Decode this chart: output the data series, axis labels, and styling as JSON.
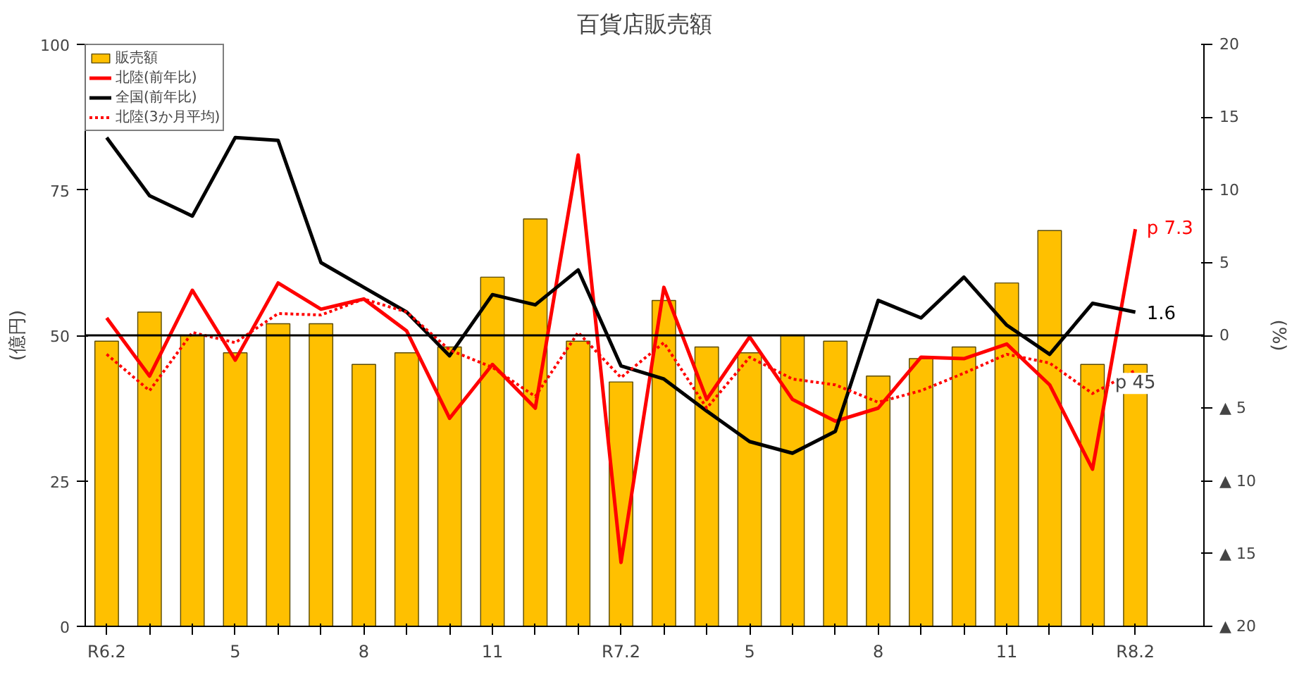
{
  "chart_data": {
    "type": "bar",
    "title": "百貨店販売額",
    "ylabel": "(億円)",
    "y2label": "(%)",
    "categories": [
      "R6.2",
      null,
      null,
      "5",
      null,
      null,
      "8",
      null,
      null,
      "11",
      null,
      null,
      "R7.2",
      null,
      null,
      "5",
      null,
      null,
      "8",
      null,
      null,
      "11",
      null,
      null,
      "R8.2"
    ],
    "series": [
      {
        "name": "販売額",
        "color": "#ffc000",
        "values": [
          49,
          54,
          50,
          47,
          52,
          52,
          45,
          47,
          48,
          60,
          70,
          49,
          42,
          56,
          48,
          47,
          50,
          49,
          43,
          46,
          48,
          59,
          68,
          45,
          45
        ],
        "value_labels": [
          null,
          null,
          null,
          null,
          null,
          null,
          null,
          null,
          null,
          null,
          null,
          null,
          null,
          null,
          null,
          null,
          null,
          null,
          null,
          null,
          null,
          null,
          null,
          null,
          "p 45"
        ]
      },
      {
        "name": "北陸(前年比)",
        "type": "line",
        "axis": "y2",
        "color": "#ff0000",
        "line_style": "solid",
        "values": [
          1.2,
          -2.8,
          3.1,
          -1.7,
          3.6,
          1.8,
          2.5,
          0.3,
          -5.7,
          -2.0,
          -5.0,
          12.4,
          -15.6,
          3.3,
          -4.4,
          -0.1,
          -4.4,
          -5.9,
          -5.0,
          -1.5,
          -1.6,
          -0.6,
          -3.4,
          -9.2,
          7.3
        ],
        "value_labels": [
          null,
          null,
          null,
          null,
          null,
          null,
          null,
          null,
          null,
          null,
          null,
          null,
          null,
          null,
          null,
          null,
          null,
          null,
          null,
          null,
          null,
          null,
          null,
          null,
          "p 7.3"
        ]
      },
      {
        "name": "全国(前年比)",
        "type": "line",
        "axis": "y2",
        "color": "#000000",
        "line_style": "solid",
        "values": [
          13.6,
          9.6,
          8.2,
          13.6,
          13.4,
          5.0,
          3.3,
          1.6,
          -1.4,
          2.8,
          2.1,
          4.5,
          -2.1,
          -3.0,
          -5.2,
          -7.3,
          -8.1,
          -6.6,
          2.4,
          1.2,
          4.0,
          0.7,
          -1.3,
          2.2,
          1.6
        ],
        "value_labels": [
          null,
          null,
          null,
          null,
          null,
          null,
          null,
          null,
          null,
          null,
          null,
          null,
          null,
          null,
          null,
          null,
          null,
          null,
          null,
          null,
          null,
          null,
          null,
          null,
          "1.6"
        ]
      },
      {
        "name": "北陸(3か月平均)",
        "type": "line",
        "axis": "y2",
        "color": "#ff0000",
        "line_style": "dotted",
        "values": [
          -1.3,
          -3.8,
          0.2,
          -0.5,
          1.5,
          1.4,
          2.5,
          1.6,
          -1.0,
          -2.2,
          -4.2,
          0.2,
          -2.9,
          -0.5,
          -5.0,
          -1.5,
          -3.0,
          -3.4,
          -4.6,
          -3.8,
          -2.6,
          -1.3,
          -1.9,
          -4.0,
          -2.4
        ]
      }
    ],
    "ylim": [
      0,
      100
    ],
    "yticks": [
      0,
      25,
      50,
      75,
      100
    ],
    "y2lim": [
      -20,
      20
    ],
    "y2ticks": [
      {
        "value": -20,
        "label": "▲ 20"
      },
      {
        "value": -15,
        "label": "▲ 15"
      },
      {
        "value": -10,
        "label": "▲ 10"
      },
      {
        "value": -5,
        "label": "▲ 5"
      },
      0,
      5,
      10,
      15,
      20
    ],
    "ref_lines": [
      {
        "axis": "y2",
        "value": 0,
        "color": "#000000"
      }
    ],
    "grid": false,
    "legend": "top left"
  }
}
